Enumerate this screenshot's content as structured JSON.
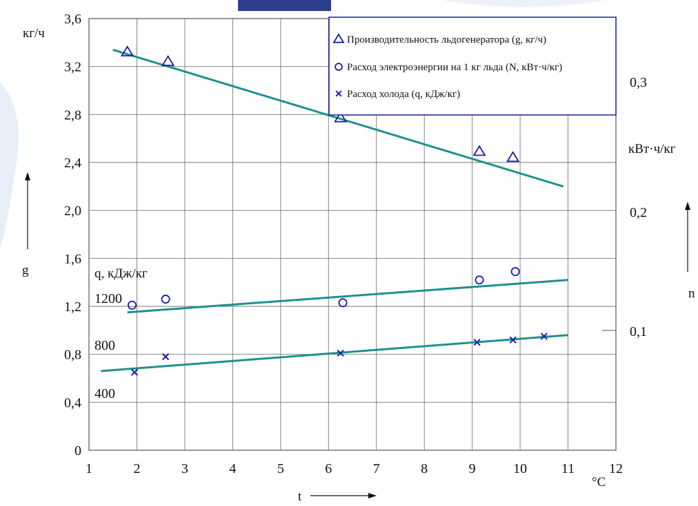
{
  "chart_data": {
    "type": "scatter",
    "x": {
      "label": "t",
      "unit": "°C",
      "range": [
        1,
        12
      ],
      "ticks": [
        "1",
        "2",
        "3",
        "4",
        "5",
        "6",
        "7",
        "8",
        "9",
        "10",
        "11",
        "12"
      ]
    },
    "y_left": {
      "label": "g",
      "unit": "кг/ч",
      "range": [
        0,
        3.6
      ],
      "ticks": [
        "0",
        "0,4",
        "0,8",
        "1,2",
        "1,6",
        "2,0",
        "2,4",
        "2,8",
        "3,2",
        "3,6"
      ]
    },
    "y_right": {
      "label": "n",
      "unit": "кВт·ч/кг",
      "ticks": [
        "0,1",
        "0,2",
        "0,3"
      ]
    },
    "q_axis": {
      "label": "q, кДж/кг",
      "ticks": [
        "400",
        "800",
        "1200"
      ]
    },
    "grid": true,
    "legend_position": "top-right",
    "legend": [
      "Производительность льдогенератора (g, кг/ч)",
      "Расход электроэнергии на 1 кг льда (N, кВт·ч/кг)",
      "Расход холода (q, кДж/кг)"
    ],
    "series": [
      {
        "marker": "triangle",
        "color": "#1a1aa8",
        "points": [
          [
            1.8,
            3.32
          ],
          [
            2.65,
            3.24
          ],
          [
            6.25,
            2.77
          ],
          [
            9.15,
            2.49
          ],
          [
            9.85,
            2.44
          ]
        ],
        "trend": [
          [
            1.5,
            3.34
          ],
          [
            10.9,
            2.2
          ]
        ],
        "trend_color": "#1f8f8f"
      },
      {
        "marker": "circle",
        "color": "#1a1aa8",
        "points": [
          [
            1.9,
            1.21
          ],
          [
            2.6,
            1.26
          ],
          [
            6.3,
            1.23
          ],
          [
            9.15,
            1.42
          ],
          [
            9.9,
            1.49
          ]
        ],
        "trend": [
          [
            1.8,
            1.15
          ],
          [
            11.0,
            1.42
          ]
        ],
        "trend_color": "#1f8f8f"
      },
      {
        "marker": "x",
        "color": "#1a1aa8",
        "points": [
          [
            1.95,
            0.65
          ],
          [
            2.6,
            0.78
          ],
          [
            6.25,
            0.81
          ],
          [
            9.1,
            0.9
          ],
          [
            9.85,
            0.92
          ],
          [
            10.5,
            0.95
          ]
        ],
        "trend": [
          [
            1.25,
            0.66
          ],
          [
            11.0,
            0.96
          ]
        ],
        "trend_color": "#1f8f8f"
      }
    ]
  }
}
